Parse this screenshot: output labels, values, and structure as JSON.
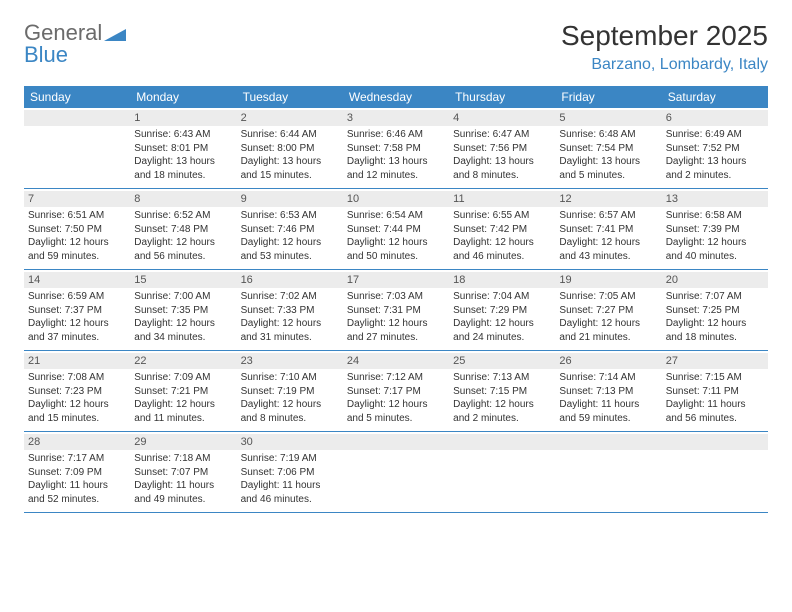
{
  "brand": {
    "part1": "General",
    "part2": "Blue"
  },
  "title": "September 2025",
  "location": "Barzano, Lombardy, Italy",
  "colors": {
    "accent": "#3b86c4",
    "header_bg": "#3b86c4",
    "daynum_bg": "#ececec",
    "text": "#333333"
  },
  "weekdays": [
    "Sunday",
    "Monday",
    "Tuesday",
    "Wednesday",
    "Thursday",
    "Friday",
    "Saturday"
  ],
  "weeks": [
    [
      {
        "n": "",
        "sunrise": "",
        "sunset": "",
        "daylight1": "",
        "daylight2": ""
      },
      {
        "n": "1",
        "sunrise": "Sunrise: 6:43 AM",
        "sunset": "Sunset: 8:01 PM",
        "daylight1": "Daylight: 13 hours",
        "daylight2": "and 18 minutes."
      },
      {
        "n": "2",
        "sunrise": "Sunrise: 6:44 AM",
        "sunset": "Sunset: 8:00 PM",
        "daylight1": "Daylight: 13 hours",
        "daylight2": "and 15 minutes."
      },
      {
        "n": "3",
        "sunrise": "Sunrise: 6:46 AM",
        "sunset": "Sunset: 7:58 PM",
        "daylight1": "Daylight: 13 hours",
        "daylight2": "and 12 minutes."
      },
      {
        "n": "4",
        "sunrise": "Sunrise: 6:47 AM",
        "sunset": "Sunset: 7:56 PM",
        "daylight1": "Daylight: 13 hours",
        "daylight2": "and 8 minutes."
      },
      {
        "n": "5",
        "sunrise": "Sunrise: 6:48 AM",
        "sunset": "Sunset: 7:54 PM",
        "daylight1": "Daylight: 13 hours",
        "daylight2": "and 5 minutes."
      },
      {
        "n": "6",
        "sunrise": "Sunrise: 6:49 AM",
        "sunset": "Sunset: 7:52 PM",
        "daylight1": "Daylight: 13 hours",
        "daylight2": "and 2 minutes."
      }
    ],
    [
      {
        "n": "7",
        "sunrise": "Sunrise: 6:51 AM",
        "sunset": "Sunset: 7:50 PM",
        "daylight1": "Daylight: 12 hours",
        "daylight2": "and 59 minutes."
      },
      {
        "n": "8",
        "sunrise": "Sunrise: 6:52 AM",
        "sunset": "Sunset: 7:48 PM",
        "daylight1": "Daylight: 12 hours",
        "daylight2": "and 56 minutes."
      },
      {
        "n": "9",
        "sunrise": "Sunrise: 6:53 AM",
        "sunset": "Sunset: 7:46 PM",
        "daylight1": "Daylight: 12 hours",
        "daylight2": "and 53 minutes."
      },
      {
        "n": "10",
        "sunrise": "Sunrise: 6:54 AM",
        "sunset": "Sunset: 7:44 PM",
        "daylight1": "Daylight: 12 hours",
        "daylight2": "and 50 minutes."
      },
      {
        "n": "11",
        "sunrise": "Sunrise: 6:55 AM",
        "sunset": "Sunset: 7:42 PM",
        "daylight1": "Daylight: 12 hours",
        "daylight2": "and 46 minutes."
      },
      {
        "n": "12",
        "sunrise": "Sunrise: 6:57 AM",
        "sunset": "Sunset: 7:41 PM",
        "daylight1": "Daylight: 12 hours",
        "daylight2": "and 43 minutes."
      },
      {
        "n": "13",
        "sunrise": "Sunrise: 6:58 AM",
        "sunset": "Sunset: 7:39 PM",
        "daylight1": "Daylight: 12 hours",
        "daylight2": "and 40 minutes."
      }
    ],
    [
      {
        "n": "14",
        "sunrise": "Sunrise: 6:59 AM",
        "sunset": "Sunset: 7:37 PM",
        "daylight1": "Daylight: 12 hours",
        "daylight2": "and 37 minutes."
      },
      {
        "n": "15",
        "sunrise": "Sunrise: 7:00 AM",
        "sunset": "Sunset: 7:35 PM",
        "daylight1": "Daylight: 12 hours",
        "daylight2": "and 34 minutes."
      },
      {
        "n": "16",
        "sunrise": "Sunrise: 7:02 AM",
        "sunset": "Sunset: 7:33 PM",
        "daylight1": "Daylight: 12 hours",
        "daylight2": "and 31 minutes."
      },
      {
        "n": "17",
        "sunrise": "Sunrise: 7:03 AM",
        "sunset": "Sunset: 7:31 PM",
        "daylight1": "Daylight: 12 hours",
        "daylight2": "and 27 minutes."
      },
      {
        "n": "18",
        "sunrise": "Sunrise: 7:04 AM",
        "sunset": "Sunset: 7:29 PM",
        "daylight1": "Daylight: 12 hours",
        "daylight2": "and 24 minutes."
      },
      {
        "n": "19",
        "sunrise": "Sunrise: 7:05 AM",
        "sunset": "Sunset: 7:27 PM",
        "daylight1": "Daylight: 12 hours",
        "daylight2": "and 21 minutes."
      },
      {
        "n": "20",
        "sunrise": "Sunrise: 7:07 AM",
        "sunset": "Sunset: 7:25 PM",
        "daylight1": "Daylight: 12 hours",
        "daylight2": "and 18 minutes."
      }
    ],
    [
      {
        "n": "21",
        "sunrise": "Sunrise: 7:08 AM",
        "sunset": "Sunset: 7:23 PM",
        "daylight1": "Daylight: 12 hours",
        "daylight2": "and 15 minutes."
      },
      {
        "n": "22",
        "sunrise": "Sunrise: 7:09 AM",
        "sunset": "Sunset: 7:21 PM",
        "daylight1": "Daylight: 12 hours",
        "daylight2": "and 11 minutes."
      },
      {
        "n": "23",
        "sunrise": "Sunrise: 7:10 AM",
        "sunset": "Sunset: 7:19 PM",
        "daylight1": "Daylight: 12 hours",
        "daylight2": "and 8 minutes."
      },
      {
        "n": "24",
        "sunrise": "Sunrise: 7:12 AM",
        "sunset": "Sunset: 7:17 PM",
        "daylight1": "Daylight: 12 hours",
        "daylight2": "and 5 minutes."
      },
      {
        "n": "25",
        "sunrise": "Sunrise: 7:13 AM",
        "sunset": "Sunset: 7:15 PM",
        "daylight1": "Daylight: 12 hours",
        "daylight2": "and 2 minutes."
      },
      {
        "n": "26",
        "sunrise": "Sunrise: 7:14 AM",
        "sunset": "Sunset: 7:13 PM",
        "daylight1": "Daylight: 11 hours",
        "daylight2": "and 59 minutes."
      },
      {
        "n": "27",
        "sunrise": "Sunrise: 7:15 AM",
        "sunset": "Sunset: 7:11 PM",
        "daylight1": "Daylight: 11 hours",
        "daylight2": "and 56 minutes."
      }
    ],
    [
      {
        "n": "28",
        "sunrise": "Sunrise: 7:17 AM",
        "sunset": "Sunset: 7:09 PM",
        "daylight1": "Daylight: 11 hours",
        "daylight2": "and 52 minutes."
      },
      {
        "n": "29",
        "sunrise": "Sunrise: 7:18 AM",
        "sunset": "Sunset: 7:07 PM",
        "daylight1": "Daylight: 11 hours",
        "daylight2": "and 49 minutes."
      },
      {
        "n": "30",
        "sunrise": "Sunrise: 7:19 AM",
        "sunset": "Sunset: 7:06 PM",
        "daylight1": "Daylight: 11 hours",
        "daylight2": "and 46 minutes."
      },
      {
        "n": "",
        "sunrise": "",
        "sunset": "",
        "daylight1": "",
        "daylight2": ""
      },
      {
        "n": "",
        "sunrise": "",
        "sunset": "",
        "daylight1": "",
        "daylight2": ""
      },
      {
        "n": "",
        "sunrise": "",
        "sunset": "",
        "daylight1": "",
        "daylight2": ""
      },
      {
        "n": "",
        "sunrise": "",
        "sunset": "",
        "daylight1": "",
        "daylight2": ""
      }
    ]
  ]
}
